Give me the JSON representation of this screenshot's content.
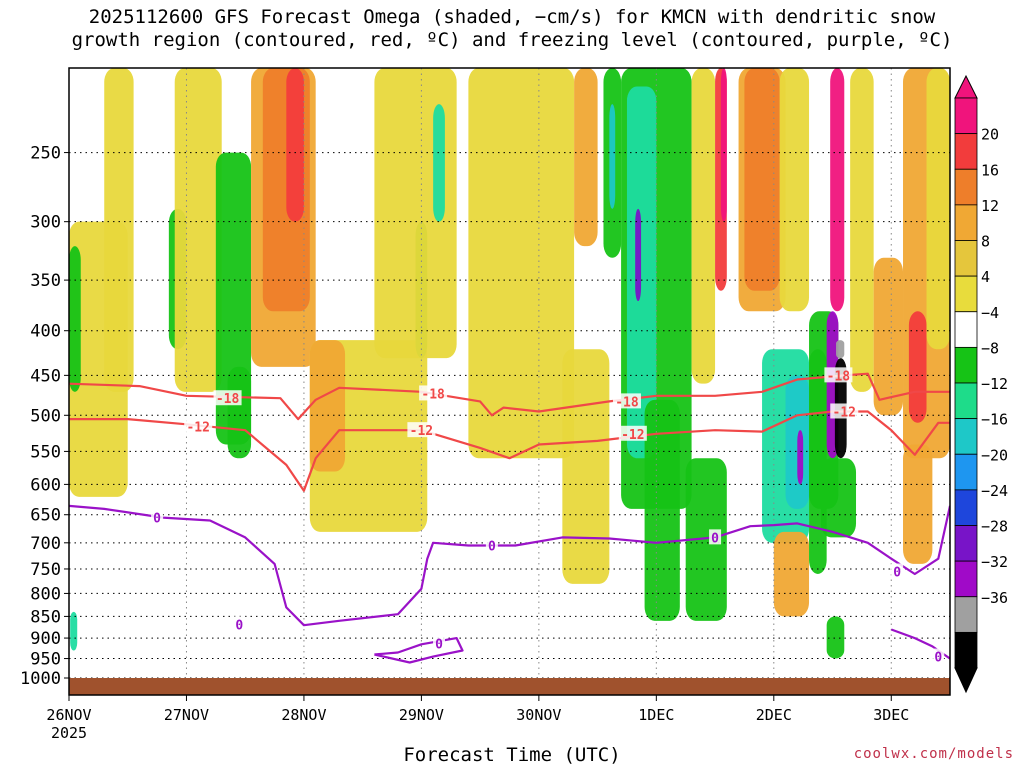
{
  "title_line1": "2025112600 GFS Forecast Omega (shaded, −cm/s) for KMCN with dendritic snow",
  "title_line2": "growth region (contoured, red, ºC) and freezing level (contoured, purple, ºC)",
  "credit": "coolwx.com/models",
  "chart_data": {
    "type": "heatmap",
    "title": "2025112600 GFS Forecast Omega (shaded, −cm/s) for KMCN with dendritic snow growth region (contoured, red, ºC) and freezing level (contoured, purple, ºC)",
    "xlabel": "Forecast Time (UTC)",
    "ylabel": "",
    "x_ticks": [
      "26NOV",
      "27NOV",
      "28NOV",
      "29NOV",
      "30NOV",
      "1DEC",
      "2DEC",
      "3DEC"
    ],
    "x_tick_sub": "2025",
    "x_range_days": [
      0,
      7.5
    ],
    "y_ticks": [
      250,
      300,
      350,
      400,
      450,
      500,
      550,
      600,
      650,
      700,
      750,
      800,
      850,
      900,
      950,
      1000
    ],
    "y_range_hpa": [
      200,
      1000
    ],
    "y_scale": "log-pressure (inverted)",
    "grid": true,
    "colorbar": {
      "labels": [
        "20",
        "16",
        "12",
        "8",
        "4",
        "−4",
        "−8",
        "−12",
        "−16",
        "−20",
        "−24",
        "−28",
        "−32",
        "−36"
      ],
      "colors": [
        "#f0147c",
        "#f23c3c",
        "#ee7e2a",
        "#f0a834",
        "#e5c63c",
        "#e8dc3c",
        "#ffffff",
        "#16c316",
        "#1edc8a",
        "#1ec8c8",
        "#1e96f0",
        "#1e46dc",
        "#7814c8",
        "#a00ac8",
        "#a0a0a0",
        "#000000"
      ]
    },
    "contours": [
      {
        "label": "-18",
        "color": "#f04848",
        "points": [
          [
            0,
            460
          ],
          [
            0.6,
            463
          ],
          [
            1,
            475
          ],
          [
            1.8,
            478
          ],
          [
            1.95,
            505
          ],
          [
            2.1,
            480
          ],
          [
            2.3,
            465
          ],
          [
            3,
            470
          ],
          [
            3.5,
            482
          ],
          [
            3.6,
            500
          ],
          [
            3.7,
            490
          ],
          [
            4,
            495
          ],
          [
            4.6,
            482
          ],
          [
            5,
            475
          ],
          [
            5.5,
            475
          ],
          [
            5.9,
            470
          ],
          [
            6.2,
            455
          ],
          [
            6.6,
            450
          ],
          [
            6.8,
            448
          ],
          [
            6.9,
            480
          ],
          [
            7.2,
            470
          ],
          [
            7.5,
            470
          ]
        ],
        "label_positions": [
          [
            1.35,
            478
          ],
          [
            3.1,
            472
          ],
          [
            4.75,
            482
          ],
          [
            6.55,
            450
          ]
        ]
      },
      {
        "label": "-12",
        "color": "#f04848",
        "points": [
          [
            0,
            505
          ],
          [
            0.5,
            505
          ],
          [
            1,
            512
          ],
          [
            1.5,
            520
          ],
          [
            1.85,
            570
          ],
          [
            2.0,
            610
          ],
          [
            2.1,
            560
          ],
          [
            2.3,
            520
          ],
          [
            3,
            520
          ],
          [
            3.5,
            545
          ],
          [
            3.75,
            560
          ],
          [
            4,
            540
          ],
          [
            4.5,
            535
          ],
          [
            5,
            525
          ],
          [
            5.5,
            520
          ],
          [
            5.9,
            522
          ],
          [
            6.2,
            500
          ],
          [
            6.5,
            495
          ],
          [
            6.8,
            495
          ],
          [
            7.0,
            520
          ],
          [
            7.2,
            555
          ],
          [
            7.4,
            510
          ],
          [
            7.5,
            510
          ]
        ],
        "label_positions": [
          [
            1.1,
            515
          ],
          [
            3.0,
            520
          ],
          [
            4.8,
            525
          ],
          [
            6.6,
            495
          ]
        ]
      },
      {
        "label": "0",
        "color": "#9a12c8",
        "points": [
          [
            0,
            635
          ],
          [
            0.3,
            640
          ],
          [
            0.8,
            655
          ],
          [
            1.2,
            660
          ],
          [
            1.5,
            690
          ],
          [
            1.75,
            740
          ],
          [
            1.85,
            830
          ],
          [
            2.0,
            870
          ],
          [
            2.3,
            860
          ],
          [
            2.8,
            845
          ],
          [
            3.0,
            790
          ],
          [
            3.05,
            730
          ],
          [
            3.1,
            700
          ],
          [
            3.4,
            705
          ],
          [
            3.8,
            705
          ],
          [
            4.2,
            690
          ],
          [
            4.6,
            692
          ],
          [
            5.0,
            700
          ],
          [
            5.5,
            690
          ],
          [
            5.8,
            670
          ],
          [
            6.0,
            668
          ],
          [
            6.2,
            665
          ],
          [
            6.5,
            680
          ],
          [
            6.8,
            700
          ],
          [
            7.0,
            730
          ],
          [
            7.2,
            760
          ],
          [
            7.4,
            730
          ],
          [
            7.5,
            635
          ]
        ],
        "label_positions": [
          [
            0.75,
            655
          ],
          [
            1.45,
            868
          ],
          [
            3.6,
            705
          ],
          [
            5.5,
            690
          ],
          [
            7.05,
            755
          ]
        ]
      },
      {
        "label": "0",
        "color": "#9a12c8",
        "points": [
          [
            2.6,
            940
          ],
          [
            2.8,
            935
          ],
          [
            3.0,
            915
          ],
          [
            3.3,
            900
          ],
          [
            3.35,
            930
          ],
          [
            3.1,
            945
          ],
          [
            2.9,
            960
          ],
          [
            2.6,
            940
          ]
        ],
        "label_positions": [
          [
            3.15,
            913
          ]
        ]
      },
      {
        "label": "0",
        "color": "#9a12c8",
        "points": [
          [
            7.0,
            880
          ],
          [
            7.2,
            900
          ],
          [
            7.35,
            920
          ],
          [
            7.5,
            950
          ]
        ],
        "label_positions": [
          [
            7.4,
            945
          ]
        ]
      }
    ],
    "shaded_regions": [
      {
        "value": 4,
        "x": [
          0.0,
          0.5
        ],
        "p": [
          300,
          620
        ]
      },
      {
        "value": -8,
        "x": [
          0.0,
          0.1
        ],
        "p": [
          320,
          470
        ]
      },
      {
        "value": -10,
        "x": [
          0.01,
          0.07
        ],
        "p": [
          840,
          930
        ]
      },
      {
        "value": 4,
        "x": [
          0.3,
          0.55
        ],
        "p": [
          200,
          470
        ]
      },
      {
        "value": -8,
        "x": [
          0.85,
          1.0
        ],
        "p": [
          290,
          420
        ]
      },
      {
        "value": 4,
        "x": [
          0.9,
          1.3
        ],
        "p": [
          200,
          470
        ]
      },
      {
        "value": -8,
        "x": [
          1.25,
          1.55
        ],
        "p": [
          250,
          540
        ]
      },
      {
        "value": 8,
        "x": [
          1.55,
          2.1
        ],
        "p": [
          200,
          440
        ]
      },
      {
        "value": 12,
        "x": [
          1.65,
          2.05
        ],
        "p": [
          200,
          380
        ]
      },
      {
        "value": 16,
        "x": [
          1.85,
          2.0
        ],
        "p": [
          200,
          300
        ]
      },
      {
        "value": -8,
        "x": [
          1.35,
          1.55
        ],
        "p": [
          440,
          560
        ]
      },
      {
        "value": 4,
        "x": [
          2.05,
          3.05
        ],
        "p": [
          410,
          680
        ]
      },
      {
        "value": 8,
        "x": [
          2.05,
          2.35
        ],
        "p": [
          410,
          580
        ]
      },
      {
        "value": -8,
        "x": [
          2.95,
          3.05
        ],
        "p": [
          300,
          430
        ]
      },
      {
        "value": 4,
        "x": [
          2.6,
          3.3
        ],
        "p": [
          200,
          430
        ]
      },
      {
        "value": -10,
        "x": [
          3.1,
          3.2
        ],
        "p": [
          220,
          300
        ]
      },
      {
        "value": 4,
        "x": [
          3.4,
          4.3
        ],
        "p": [
          200,
          560
        ]
      },
      {
        "value": 4,
        "x": [
          4.2,
          4.6
        ],
        "p": [
          420,
          780
        ]
      },
      {
        "value": 8,
        "x": [
          4.3,
          4.5
        ],
        "p": [
          200,
          320
        ]
      },
      {
        "value": -8,
        "x": [
          4.55,
          4.7
        ],
        "p": [
          200,
          330
        ]
      },
      {
        "value": -12,
        "x": [
          4.6,
          4.65
        ],
        "p": [
          220,
          290
        ]
      },
      {
        "value": -8,
        "x": [
          4.7,
          5.3
        ],
        "p": [
          200,
          640
        ]
      },
      {
        "value": -10,
        "x": [
          4.75,
          5.0
        ],
        "p": [
          210,
          560
        ]
      },
      {
        "value": -24,
        "x": [
          4.82,
          4.87
        ],
        "p": [
          290,
          370
        ]
      },
      {
        "value": -8,
        "x": [
          4.9,
          5.2
        ],
        "p": [
          480,
          860
        ]
      },
      {
        "value": 4,
        "x": [
          5.3,
          5.5
        ],
        "p": [
          200,
          460
        ]
      },
      {
        "value": 16,
        "x": [
          5.5,
          5.6
        ],
        "p": [
          200,
          360
        ]
      },
      {
        "value": 20,
        "x": [
          5.55,
          5.6
        ],
        "p": [
          200,
          300
        ]
      },
      {
        "value": -8,
        "x": [
          5.25,
          5.6
        ],
        "p": [
          560,
          860
        ]
      },
      {
        "value": 8,
        "x": [
          5.7,
          6.1
        ],
        "p": [
          200,
          380
        ]
      },
      {
        "value": 12,
        "x": [
          5.75,
          6.05
        ],
        "p": [
          200,
          360
        ]
      },
      {
        "value": 4,
        "x": [
          6.05,
          6.3
        ],
        "p": [
          200,
          380
        ]
      },
      {
        "value": -10,
        "x": [
          5.9,
          6.3
        ],
        "p": [
          420,
          700
        ]
      },
      {
        "value": -12,
        "x": [
          6.1,
          6.3
        ],
        "p": [
          450,
          640
        ]
      },
      {
        "value": -28,
        "x": [
          6.2,
          6.25
        ],
        "p": [
          520,
          600
        ]
      },
      {
        "value": -8,
        "x": [
          6.3,
          6.55
        ],
        "p": [
          380,
          640
        ]
      },
      {
        "value": 8,
        "x": [
          6.0,
          6.3
        ],
        "p": [
          680,
          850
        ]
      },
      {
        "value": -8,
        "x": [
          6.3,
          6.45
        ],
        "p": [
          420,
          760
        ]
      },
      {
        "value": -28,
        "x": [
          6.45,
          6.55
        ],
        "p": [
          380,
          560
        ]
      },
      {
        "value": -36,
        "x": [
          6.52,
          6.62
        ],
        "p": [
          430,
          560
        ]
      },
      {
        "value": -32,
        "x": [
          6.53,
          6.6
        ],
        "p": [
          410,
          430
        ]
      },
      {
        "value": 20,
        "x": [
          6.48,
          6.6
        ],
        "p": [
          200,
          380
        ]
      },
      {
        "value": -8,
        "x": [
          6.4,
          6.7
        ],
        "p": [
          560,
          690
        ]
      },
      {
        "value": -8,
        "x": [
          6.45,
          6.6
        ],
        "p": [
          850,
          950
        ]
      },
      {
        "value": 4,
        "x": [
          6.65,
          6.85
        ],
        "p": [
          200,
          470
        ]
      },
      {
        "value": 8,
        "x": [
          6.85,
          7.1
        ],
        "p": [
          330,
          500
        ]
      },
      {
        "value": 8,
        "x": [
          7.1,
          7.5
        ],
        "p": [
          200,
          560
        ]
      },
      {
        "value": 16,
        "x": [
          7.15,
          7.3
        ],
        "p": [
          380,
          510
        ]
      },
      {
        "value": 8,
        "x": [
          7.1,
          7.35
        ],
        "p": [
          540,
          740
        ]
      },
      {
        "value": 4,
        "x": [
          7.3,
          7.5
        ],
        "p": [
          200,
          420
        ]
      }
    ]
  }
}
